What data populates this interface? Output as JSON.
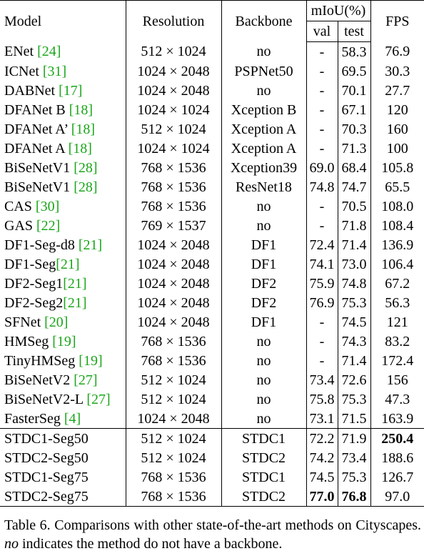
{
  "header": {
    "model": "Model",
    "resolution": "Resolution",
    "backbone": "Backbone",
    "miou": "mIoU(%)",
    "val": "val",
    "test": "test",
    "fps": "FPS"
  },
  "rows": [
    {
      "name": "ENet ",
      "ref": "[24]",
      "res": "512 × 1024",
      "bb": "no",
      "val": "-",
      "test": "58.3",
      "fps": "76.9"
    },
    {
      "name": "ICNet ",
      "ref": "[31]",
      "res": "1024 × 2048",
      "bb": "PSPNet50",
      "val": "-",
      "test": "69.5",
      "fps": "30.3"
    },
    {
      "name": "DABNet ",
      "ref": "[17]",
      "res": "1024 × 2048",
      "bb": "no",
      "val": "-",
      "test": "70.1",
      "fps": "27.7"
    },
    {
      "name": "DFANet B ",
      "ref": "[18]",
      "res": "1024 × 1024",
      "bb": "Xception B",
      "val": "-",
      "test": "67.1",
      "fps": "120"
    },
    {
      "name": "DFANet A’ ",
      "ref": "[18]",
      "res": "512 × 1024",
      "bb": "Xception A",
      "val": "-",
      "test": "70.3",
      "fps": "160"
    },
    {
      "name": "DFANet A ",
      "ref": "[18]",
      "res": "1024 × 1024",
      "bb": "Xception A",
      "val": "-",
      "test": "71.3",
      "fps": "100"
    },
    {
      "name": "BiSeNetV1 ",
      "ref": "[28]",
      "res": "768 × 1536",
      "bb": "Xception39",
      "val": "69.0",
      "test": "68.4",
      "fps": "105.8"
    },
    {
      "name": "BiSeNetV1 ",
      "ref": "[28]",
      "res": "768 × 1536",
      "bb": "ResNet18",
      "val": "74.8",
      "test": "74.7",
      "fps": "65.5"
    },
    {
      "name": "CAS ",
      "ref": "[30]",
      "res": "768 × 1536",
      "bb": "no",
      "val": "-",
      "test": "70.5",
      "fps": "108.0"
    },
    {
      "name": "GAS ",
      "ref": "[22]",
      "res": "769 × 1537",
      "bb": "no",
      "val": "-",
      "test": "71.8",
      "fps": "108.4"
    },
    {
      "name": "DF1-Seg-d8 ",
      "ref": "[21]",
      "res": "1024 × 2048",
      "bb": "DF1",
      "val": "72.4",
      "test": "71.4",
      "fps": "136.9"
    },
    {
      "name": "DF1-Seg",
      "ref": "[21]",
      "res": "1024 × 2048",
      "bb": "DF1",
      "val": "74.1",
      "test": "73.0",
      "fps": "106.4"
    },
    {
      "name": "DF2-Seg1",
      "ref": "[21]",
      "res": "1024 × 2048",
      "bb": "DF2",
      "val": "75.9",
      "test": "74.8",
      "fps": "67.2"
    },
    {
      "name": "DF2-Seg2",
      "ref": "[21]",
      "res": "1024 × 2048",
      "bb": "DF2",
      "val": "76.9",
      "test": "75.3",
      "fps": "56.3"
    },
    {
      "name": "SFNet ",
      "ref": "[20]",
      "res": "1024 × 2048",
      "bb": "DF1",
      "val": "-",
      "test": "74.5",
      "fps": "121"
    },
    {
      "name": "HMSeg ",
      "ref": "[19]",
      "res": "768 × 1536",
      "bb": "no",
      "val": "-",
      "test": "74.3",
      "fps": "83.2"
    },
    {
      "name": "TinyHMSeg ",
      "ref": "[19]",
      "res": "768 × 1536",
      "bb": "no",
      "val": "-",
      "test": "71.4",
      "fps": "172.4"
    },
    {
      "name": "BiSeNetV2 ",
      "ref": "[27]",
      "res": "512 × 1024",
      "bb": "no",
      "val": "73.4",
      "test": "72.6",
      "fps": "156"
    },
    {
      "name": "BiSeNetV2-L ",
      "ref": "[27]",
      "res": "512 × 1024",
      "bb": "no",
      "val": "75.8",
      "test": "75.3",
      "fps": "47.3"
    },
    {
      "name": "FasterSeg ",
      "ref": "[4]",
      "res": "1024 × 2048",
      "bb": "no",
      "val": "73.1",
      "test": "71.5",
      "fps": "163.9"
    },
    {
      "name": "STDC1-Seg50",
      "ref": "",
      "res": "512 × 1024",
      "bb": "STDC1",
      "val": "72.2",
      "test": "71.9",
      "fps": "250.4",
      "bold": [
        "fps"
      ]
    },
    {
      "name": "STDC2-Seg50",
      "ref": "",
      "res": "512 × 1024",
      "bb": "STDC2",
      "val": "74.2",
      "test": "73.4",
      "fps": "188.6"
    },
    {
      "name": "STDC1-Seg75",
      "ref": "",
      "res": "768 × 1536",
      "bb": "STDC1",
      "val": "74.5",
      "test": "75.3",
      "fps": "126.7"
    },
    {
      "name": "STDC2-Seg75",
      "ref": "",
      "res": "768 × 1536",
      "bb": "STDC2",
      "val": "77.0",
      "test": "76.8",
      "fps": "97.0",
      "bold": [
        "val",
        "test"
      ]
    }
  ],
  "caption": {
    "part1": "Table 6. Comparisons with other state-of-the-art methods on Cityscapes. ",
    "em": "no",
    "part2": " indicates the method do not have a backbone."
  },
  "colors": {
    "ref_link": "#1aa61a",
    "text": "#000000"
  }
}
